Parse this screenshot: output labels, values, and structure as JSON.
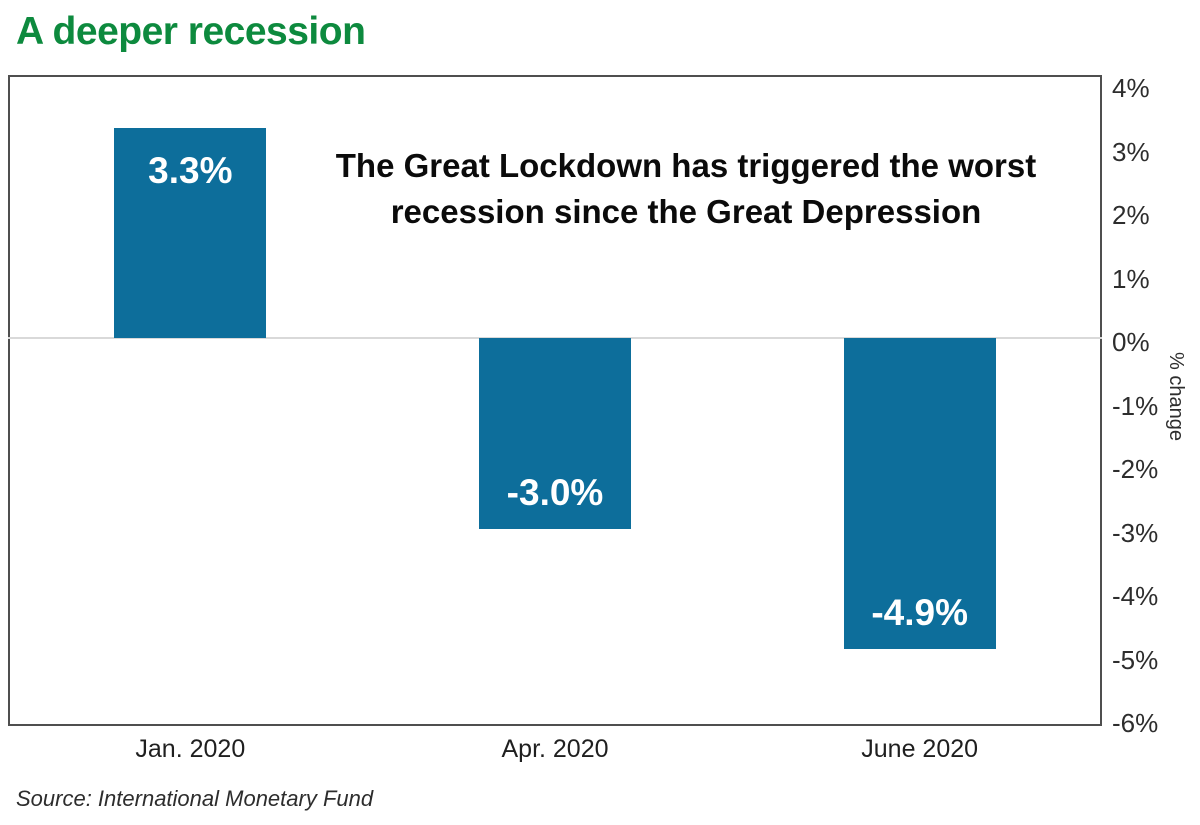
{
  "header": {
    "title": "A deeper recession",
    "title_color": "#0d8a3e"
  },
  "footer": {
    "source": "Source: International Monetary Fund"
  },
  "chart_data": {
    "type": "bar",
    "title": "A deeper recession",
    "categories": [
      "Jan. 2020",
      "Apr. 2020",
      "June 2020"
    ],
    "values": [
      3.3,
      -3.0,
      -4.9
    ],
    "bar_labels": [
      "3.3%",
      "-3.0%",
      "-4.9%"
    ],
    "bar_color": "#0d6e9b",
    "annotation_lines": [
      "The Great Lockdown has triggered the worst",
      "recession since the Great Depression"
    ],
    "xlabel": "",
    "ylabel": "% change",
    "ylim": [
      -6,
      4
    ],
    "yticks": [
      4,
      3,
      2,
      1,
      0,
      -1,
      -2,
      -3,
      -4,
      -5,
      -6
    ],
    "ytick_labels": [
      "4%",
      "3%",
      "2%",
      "1%",
      "0%",
      "-1%",
      "-2%",
      "-3%",
      "-4%",
      "-5%",
      "-6%"
    ],
    "grid": "zero-line-only",
    "legend": "none"
  }
}
